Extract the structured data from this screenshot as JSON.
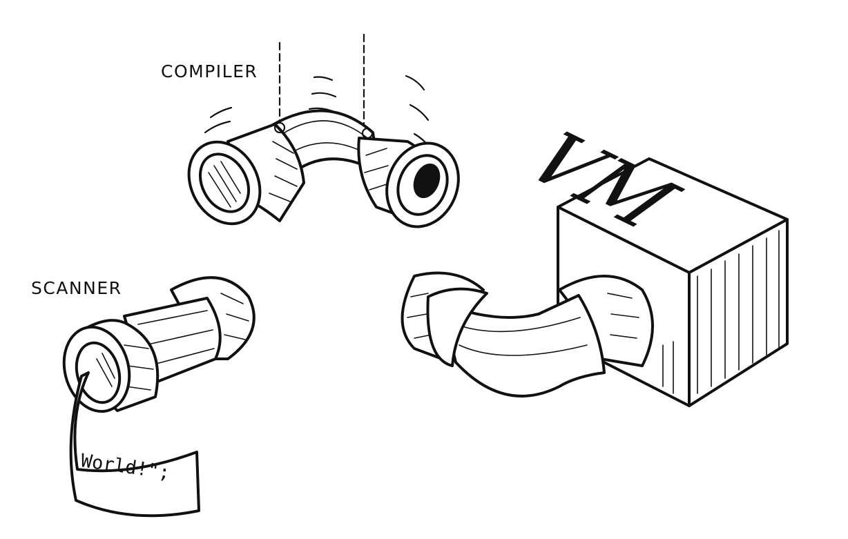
{
  "labels": {
    "compiler": "COMPILER",
    "scanner": "SCANNER",
    "vm": "VM",
    "tape": "World!\";"
  },
  "colors": {
    "ink": "#111111",
    "paper": "#ffffff"
  }
}
